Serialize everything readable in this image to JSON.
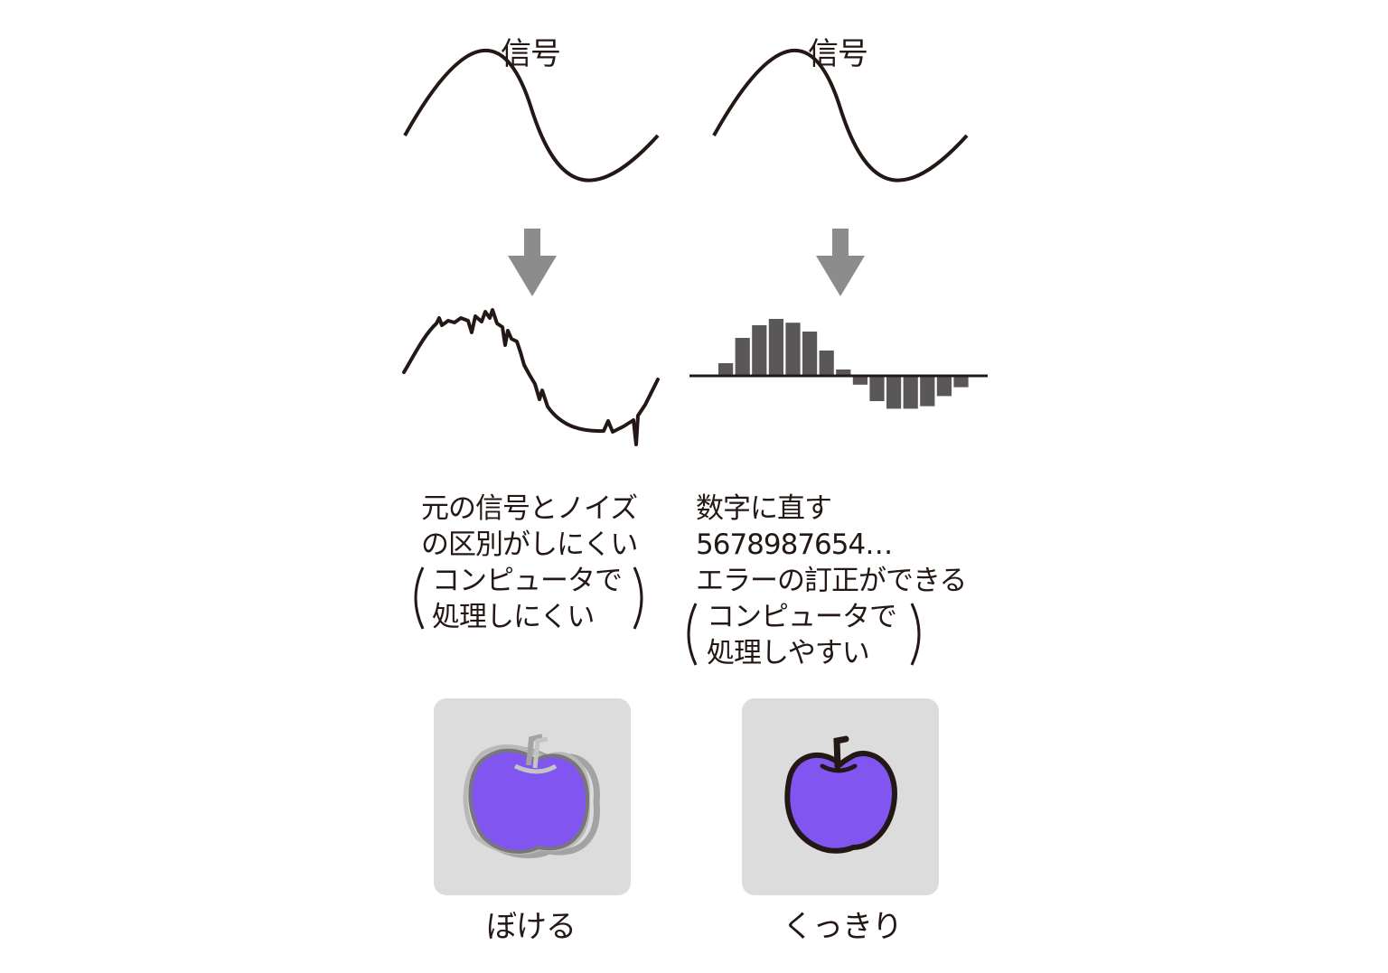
{
  "colors": {
    "ink": "#231815",
    "arrow": "#8c8c8c",
    "bar": "#595757",
    "panel_bg": "#dcdcdc",
    "apple_fill": "#8155f0",
    "ghost_outline": "#a3a3a3"
  },
  "left": {
    "title": "信号",
    "desc": [
      "元の信号とノイズ",
      "の区別がしにくい",
      "コンピュータで",
      "処理しにくい"
    ],
    "caption": "ぼける"
  },
  "right": {
    "title": "信号",
    "desc": [
      "数字に直す",
      "5678987654…",
      "エラーの訂正ができる",
      "コンピュータで",
      "処理しやすい"
    ],
    "caption": "くっきり"
  },
  "quantized_bars": [
    1,
    3,
    4,
    4.5,
    4.2,
    3.5,
    2,
    0.5,
    -0.7,
    -2,
    -2.6,
    -2.6,
    -2.4,
    -1.6,
    -0.9
  ],
  "icons": {
    "down_arrow": "down-arrow-icon",
    "blurred_apple": "blurred-apple-icon",
    "sharp_apple": "sharp-apple-icon"
  }
}
